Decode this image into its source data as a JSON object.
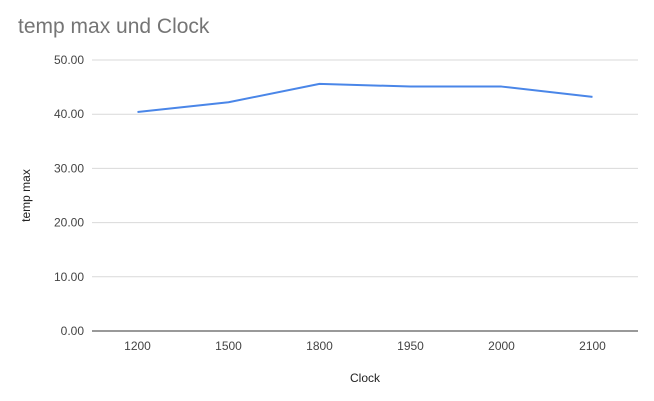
{
  "chart_data": {
    "type": "line",
    "title": "temp max und Clock",
    "xlabel": "Clock",
    "ylabel": "temp max",
    "categories": [
      "1200",
      "1500",
      "1800",
      "1950",
      "2000",
      "2100"
    ],
    "series": [
      {
        "values": [
          40.4,
          42.2,
          45.6,
          45.1,
          45.1,
          43.2
        ],
        "color": "#4a86e8"
      }
    ],
    "ylim": [
      0,
      50
    ],
    "yticks": [
      "0.00",
      "10.00",
      "20.00",
      "30.00",
      "40.00",
      "50.00"
    ],
    "grid": true,
    "legend": "none"
  }
}
